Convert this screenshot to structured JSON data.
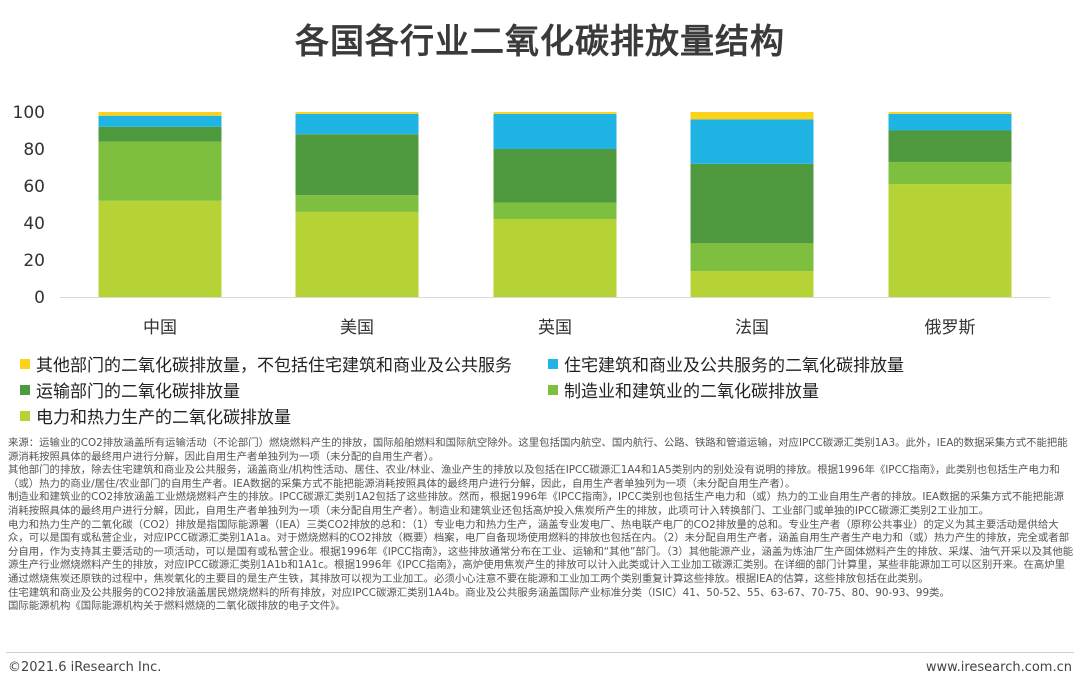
{
  "title": "各国各行业二氧化碳排放量结构",
  "chart_data": {
    "type": "bar",
    "stacked": true,
    "categories": [
      "中国",
      "美国",
      "英国",
      "法国",
      "俄罗斯"
    ],
    "ylim": [
      0,
      100
    ],
    "yticks": [
      0,
      20,
      40,
      60,
      80,
      100
    ],
    "series": [
      {
        "name": "电力和热力生产的二氧化碳排放量",
        "color": "#b5d334",
        "values": [
          52,
          46,
          42,
          14,
          61
        ]
      },
      {
        "name": "制造业和建筑业的二氧化碳排放量",
        "color": "#7fbf3f",
        "values": [
          32,
          9,
          9,
          15,
          12
        ]
      },
      {
        "name": "运输部门的二氧化碳排放量",
        "color": "#4f9a3e",
        "values": [
          8,
          33,
          29,
          43,
          17
        ]
      },
      {
        "name": "住宅建筑和商业及公共服务的二氧化碳排放量",
        "color": "#1fb4e3",
        "values": [
          6,
          11,
          19,
          24,
          9
        ]
      },
      {
        "name": "其他部门的二氧化碳排放量，不包括住宅建筑和商业及公共服务",
        "color": "#fcd21c",
        "values": [
          2,
          1,
          1,
          4,
          1
        ]
      }
    ],
    "legend_order": [
      4,
      3,
      2,
      1,
      0
    ]
  },
  "notes": [
    "来源：运输业的CO2排放涵盖所有运输活动（不论部门）燃烧燃料产生的排放，国际船舶燃料和国际航空除外。这里包括国内航空、国内航行、公路、铁路和管道运输，对应IPCC碳源汇类别1A3。此外，IEA的数据采集方式不能把能源消耗按照具体的最终用户进行分解，因此自用生产者单独列为一项（未分配的自用生产者）。",
    "其他部门的排放，除去住宅建筑和商业及公共服务，涵盖商业/机构性活动、居住、农业/林业、渔业产生的排放以及包括在IPCC碳源汇1A4和1A5类别内的别处没有说明的排放。根据1996年《IPCC指南》，此类别也包括生产电力和（或）热力的商业/居住/农业部门的自用生产者。IEA数据的采集方式不能把能源消耗按照具体的最终用户进行分解，因此，自用生产者单独列为一项（未分配自用生产者）。",
    "制造业和建筑业的CO2排放涵盖工业燃烧燃料产生的排放。IPCC碳源汇类别1A2包括了这些排放。然而，根据1996年《IPCC指南》，IPCC类别也包括生产电力和（或）热力的工业自用生产者的排放。IEA数据的采集方式不能把能源消耗按照具体的最终用户进行分解，因此，自用生产者单独列为一项（未分配自用生产者）。制造业和建筑业还包括高炉投入焦炭所产生的排放，此项可计入转换部门、工业部门或单独的IPCC碳源汇类别2工业加工。",
    "电力和热力生产的二氧化碳（CO2）排放是指国际能源署（IEA）三类CO2排放的总和：（1）专业电力和热力生产，涵盖专业发电厂、热电联产电厂的CO2排放量的总和。专业生产者（原称公共事业）的定义为其主要活动是供给大众，可以是国有或私营企业，对应IPCC碳源汇类别1A1a。对于燃烧燃料的CO2排放（概要）档案，电厂自备现场使用燃料的排放也包括在内。（2）未分配自用生产者，涵盖自用生产者生产电力和（或）热力产生的排放，完全或者部分自用，作为支持其主要活动的一项活动，可以是国有或私营企业。根据1996年《IPCC指南》，这些排放通常分布在工业、运输和“其他”部门。（3）其他能源产业，涵盖为炼油厂生产固体燃料产生的排放、采煤、油气开采以及其他能源生产行业燃烧燃料产生的排放，对应IPCC碳源汇类别1A1b和1A1c。根据1996年《IPCC指南》，高炉使用焦炭产生的排放可以计入此类或计入工业加工碳源汇类别。在详细的部门计算里，某些非能源加工可以区别开来。在高炉里通过燃烧焦炭还原铁的过程中，焦炭氧化的主要目的是生产生铁，其排放可以视为工业加工。必须小心注意不要在能源和工业加工两个类别重复计算这些排放。根据IEA的估算，这些排放包括在此类别。",
    "住宅建筑和商业及公共服务的CO2排放涵盖居民燃烧燃料的所有排放，对应IPCC碳源汇类别1A4b。商业及公共服务涵盖国际产业标准分类（ISIC）41、50-52、55、63-67、70-75、80、90-93、99类。",
    "国际能源机构《国际能源机构关于燃料燃烧的二氧化碳排放的电子文件》。"
  ],
  "footer": {
    "copyright": "©2021.6 iResearch Inc.",
    "website": "www.iresearch.com.cn"
  }
}
